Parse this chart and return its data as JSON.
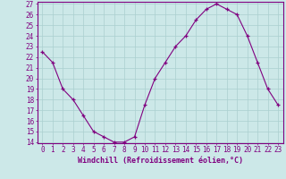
{
  "x": [
    0,
    1,
    2,
    3,
    4,
    5,
    6,
    7,
    8,
    9,
    10,
    11,
    12,
    13,
    14,
    15,
    16,
    17,
    18,
    19,
    20,
    21,
    22,
    23
  ],
  "y": [
    22.5,
    21.5,
    19.0,
    18.0,
    16.5,
    15.0,
    14.5,
    14.0,
    14.0,
    14.5,
    17.5,
    20.0,
    21.5,
    23.0,
    24.0,
    25.5,
    26.5,
    27.0,
    26.5,
    26.0,
    24.0,
    21.5,
    19.0,
    17.5
  ],
  "line_color": "#800080",
  "marker": "+",
  "marker_color": "#800080",
  "bg_color": "#cce8e8",
  "grid_color": "#aacfcf",
  "axis_label_color": "#800080",
  "tick_label_color": "#800080",
  "xlabel": "Windchill (Refroidissement éolien,°C)",
  "ylim": [
    14,
    27
  ],
  "xlim": [
    -0.5,
    23.5
  ],
  "yticks": [
    14,
    15,
    16,
    17,
    18,
    19,
    20,
    21,
    22,
    23,
    24,
    25,
    26,
    27
  ],
  "xticks": [
    0,
    1,
    2,
    3,
    4,
    5,
    6,
    7,
    8,
    9,
    10,
    11,
    12,
    13,
    14,
    15,
    16,
    17,
    18,
    19,
    20,
    21,
    22,
    23
  ],
  "spine_color": "#800080",
  "font_size_label": 6,
  "font_size_tick": 5.5
}
